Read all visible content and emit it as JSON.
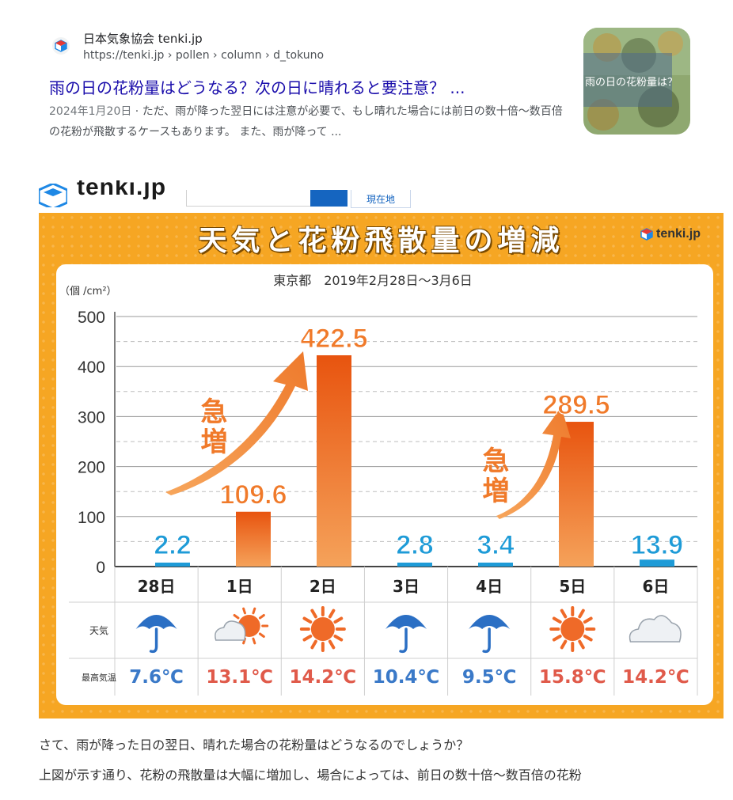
{
  "result": {
    "site_name": "日本気象協会 tenki.jp",
    "url": "https://tenki.jp › pollen › column › d_tokuno",
    "title": "雨の日の花粉量はどうなる？次の日に晴れると要注意？ ...",
    "date": "2024年1月20日",
    "snippet": " · ただ、雨が降った翌日には注意が必要で、もし晴れた場合には前日の数十倍～数百倍の花粉が飛散するケースもあります。 また、雨が降って ...",
    "thumb_text": "雨の日の花粉量は？"
  },
  "embed": {
    "logo": "tenki.jp",
    "location_button": "現在地"
  },
  "infographic": {
    "title": "天気と花粉飛散量の増減",
    "brand": "tenki.jp",
    "subtitle": "東京都　2019年2月28日〜3月6日",
    "unit_label": "（個 /cm²）",
    "surge_label": "急増",
    "weather_row_label": "天気",
    "temp_row_label": "最高気温",
    "colors": {
      "background": "#f6a623",
      "low_bar": "#1e9bd7",
      "high_bar": "#f07a2a",
      "temp_warm": "#e05a4a",
      "temp_cool": "#3a79c8"
    }
  },
  "chart_data": {
    "type": "bar",
    "categories": [
      "28日",
      "1日",
      "2日",
      "3日",
      "4日",
      "5日",
      "6日"
    ],
    "values": [
      2.2,
      109.6,
      422.5,
      2.8,
      3.4,
      289.5,
      13.9
    ],
    "value_labels": [
      "2.2",
      "109.6",
      "422.5",
      "2.8",
      "3.4",
      "289.5",
      "13.9"
    ],
    "ylim": [
      0,
      500
    ],
    "yticks": [
      "0",
      "100",
      "200",
      "300",
      "400",
      "500"
    ],
    "ylabel": "（個 /cm²）",
    "grid": true,
    "weather_icons": [
      "umbrella-icon",
      "cloud-sun-icon",
      "sun-icon",
      "umbrella-icon",
      "umbrella-icon",
      "sun-icon",
      "cloud-icon"
    ],
    "max_temps": [
      "7.6℃",
      "13.1℃",
      "14.2℃",
      "10.4℃",
      "9.5℃",
      "15.8℃",
      "14.2℃"
    ],
    "temp_types": [
      "cool",
      "warm",
      "warm",
      "cool",
      "cool",
      "warm",
      "warm"
    ]
  },
  "article": {
    "line1": "さて、雨が降った日の翌日、晴れた場合の花粉量はどうなるのでしょうか？",
    "line2": "上図が示す通り、花粉の飛散量は大幅に増加し、場合によっては、前日の数十倍〜数百倍の花粉"
  }
}
